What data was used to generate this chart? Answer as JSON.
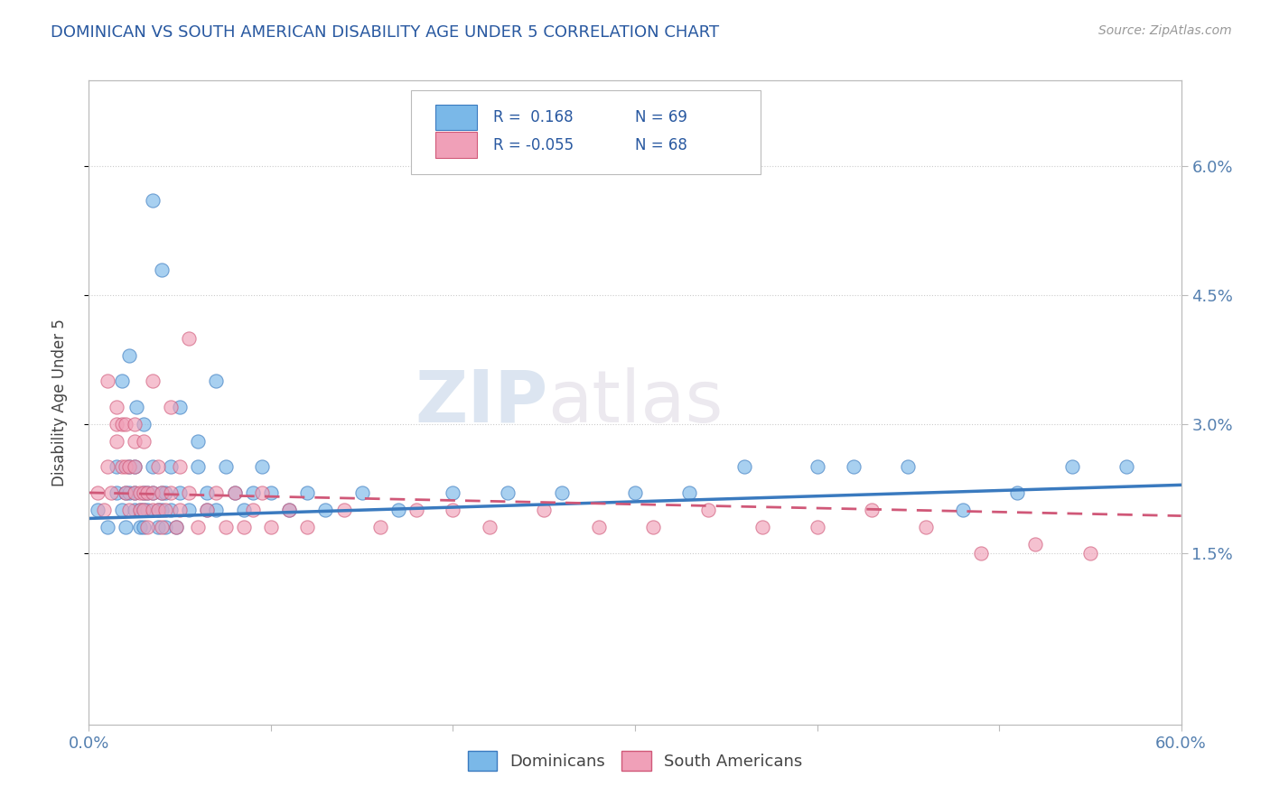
{
  "title": "DOMINICAN VS SOUTH AMERICAN DISABILITY AGE UNDER 5 CORRELATION CHART",
  "source": "Source: ZipAtlas.com",
  "ylabel": "Disability Age Under 5",
  "ytick_labels": [
    "1.5%",
    "3.0%",
    "4.5%",
    "6.0%"
  ],
  "ytick_values": [
    0.015,
    0.03,
    0.045,
    0.06
  ],
  "xlim": [
    0.0,
    0.6
  ],
  "ylim": [
    -0.005,
    0.07
  ],
  "legend_r1": "R =  0.168",
  "legend_n1": "N = 69",
  "legend_r2": "R = -0.055",
  "legend_n2": "N = 68",
  "blue_color": "#7ab8e8",
  "pink_color": "#f0a0b8",
  "trend_blue": "#3a7abf",
  "trend_pink": "#d05878",
  "title_color": "#2858a0",
  "watermark_color": "#d0dff0",
  "dominicans_x": [
    0.005,
    0.01,
    0.015,
    0.015,
    0.018,
    0.02,
    0.02,
    0.022,
    0.022,
    0.025,
    0.025,
    0.025,
    0.028,
    0.028,
    0.03,
    0.03,
    0.03,
    0.032,
    0.032,
    0.035,
    0.035,
    0.038,
    0.038,
    0.04,
    0.04,
    0.042,
    0.042,
    0.045,
    0.045,
    0.048,
    0.05,
    0.055,
    0.06,
    0.065,
    0.065,
    0.07,
    0.075,
    0.08,
    0.085,
    0.09,
    0.095,
    0.1,
    0.11,
    0.12,
    0.13,
    0.15,
    0.17,
    0.2,
    0.23,
    0.26,
    0.3,
    0.33,
    0.36,
    0.4,
    0.42,
    0.45,
    0.48,
    0.51,
    0.54,
    0.57,
    0.018,
    0.022,
    0.026,
    0.03,
    0.035,
    0.04,
    0.05,
    0.06,
    0.07
  ],
  "dominicans_y": [
    0.02,
    0.018,
    0.022,
    0.025,
    0.02,
    0.022,
    0.018,
    0.022,
    0.025,
    0.02,
    0.022,
    0.025,
    0.02,
    0.018,
    0.02,
    0.022,
    0.018,
    0.022,
    0.02,
    0.022,
    0.025,
    0.02,
    0.018,
    0.022,
    0.02,
    0.018,
    0.022,
    0.02,
    0.025,
    0.018,
    0.022,
    0.02,
    0.025,
    0.02,
    0.022,
    0.02,
    0.025,
    0.022,
    0.02,
    0.022,
    0.025,
    0.022,
    0.02,
    0.022,
    0.02,
    0.022,
    0.02,
    0.022,
    0.022,
    0.022,
    0.022,
    0.022,
    0.025,
    0.025,
    0.025,
    0.025,
    0.02,
    0.022,
    0.025,
    0.025,
    0.035,
    0.038,
    0.032,
    0.03,
    0.056,
    0.048,
    0.032,
    0.028,
    0.035
  ],
  "southam_x": [
    0.005,
    0.008,
    0.01,
    0.012,
    0.015,
    0.015,
    0.018,
    0.018,
    0.02,
    0.02,
    0.022,
    0.022,
    0.025,
    0.025,
    0.025,
    0.028,
    0.028,
    0.03,
    0.03,
    0.032,
    0.032,
    0.035,
    0.035,
    0.038,
    0.038,
    0.04,
    0.04,
    0.042,
    0.045,
    0.048,
    0.05,
    0.055,
    0.06,
    0.065,
    0.07,
    0.075,
    0.08,
    0.085,
    0.09,
    0.095,
    0.1,
    0.11,
    0.12,
    0.14,
    0.16,
    0.18,
    0.2,
    0.22,
    0.25,
    0.28,
    0.31,
    0.34,
    0.37,
    0.4,
    0.43,
    0.46,
    0.49,
    0.52,
    0.55,
    0.01,
    0.015,
    0.02,
    0.025,
    0.03,
    0.035,
    0.045,
    0.05,
    0.055
  ],
  "southam_y": [
    0.022,
    0.02,
    0.025,
    0.022,
    0.028,
    0.03,
    0.025,
    0.03,
    0.022,
    0.025,
    0.02,
    0.025,
    0.022,
    0.025,
    0.028,
    0.02,
    0.022,
    0.02,
    0.022,
    0.018,
    0.022,
    0.02,
    0.022,
    0.02,
    0.025,
    0.018,
    0.022,
    0.02,
    0.022,
    0.018,
    0.02,
    0.022,
    0.018,
    0.02,
    0.022,
    0.018,
    0.022,
    0.018,
    0.02,
    0.022,
    0.018,
    0.02,
    0.018,
    0.02,
    0.018,
    0.02,
    0.02,
    0.018,
    0.02,
    0.018,
    0.018,
    0.02,
    0.018,
    0.018,
    0.02,
    0.018,
    0.015,
    0.016,
    0.015,
    0.035,
    0.032,
    0.03,
    0.03,
    0.028,
    0.035,
    0.032,
    0.025,
    0.04
  ]
}
